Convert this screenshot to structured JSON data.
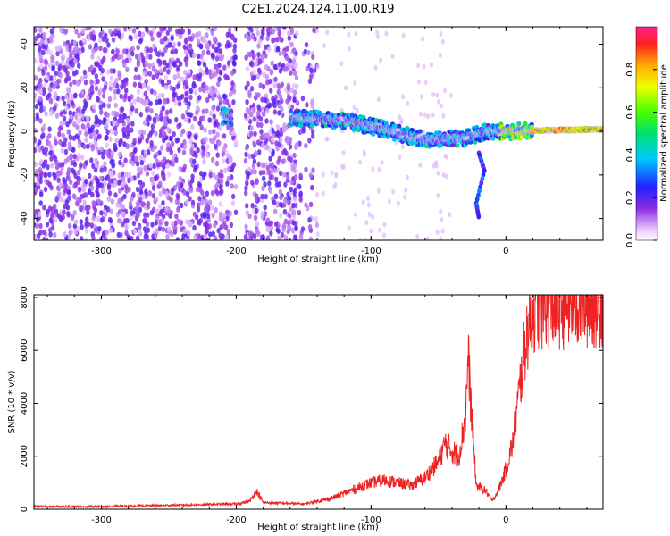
{
  "title": "C2E1.2024.124.11.00.R19",
  "chart_data": [
    {
      "type": "heatmap",
      "xlabel": "Height of straight line (km)",
      "ylabel": "Frequency (Hz)",
      "xlim": [
        -350,
        72
      ],
      "ylim": [
        -50,
        48
      ],
      "xticks": [
        -300,
        -200,
        -100,
        0
      ],
      "yticks": [
        -40,
        -20,
        0,
        20,
        40
      ],
      "colorbar": {
        "label": "Normalized spectral amplitude",
        "range": [
          0,
          1
        ],
        "ticks": [
          "0.0",
          "0.2",
          "0.4",
          "0.6",
          "0.8"
        ],
        "tick_values": [
          0,
          0.2,
          0.4,
          0.6,
          0.8
        ]
      },
      "features": {
        "noise_region_x": [
          -350,
          -140
        ],
        "data_gap_x": [
          -200,
          -193
        ],
        "signal_path": [
          {
            "x": -210,
            "y": 7
          },
          {
            "x": -150,
            "y": 6
          },
          {
            "x": -120,
            "y": 5
          },
          {
            "x": -90,
            "y": 1
          },
          {
            "x": -60,
            "y": -4
          },
          {
            "x": -30,
            "y": -3
          },
          {
            "x": -15,
            "y": 0
          },
          {
            "x": 0,
            "y": 0
          },
          {
            "x": 72,
            "y": 1
          }
        ],
        "strong_tone_x": [
          20,
          72
        ],
        "branch_down": [
          {
            "x": -20,
            "y": -10
          },
          {
            "x": -16,
            "y": -18
          },
          {
            "x": -22,
            "y": -33
          },
          {
            "x": -20,
            "y": -40
          }
        ]
      }
    },
    {
      "type": "line",
      "xlabel": "Height of straight line (km)",
      "ylabel": "SNR (10 * v/v)",
      "xlim": [
        -350,
        72
      ],
      "ylim": [
        0,
        8100
      ],
      "xticks": [
        -300,
        -200,
        -100,
        0
      ],
      "yticks": [
        0,
        2000,
        4000,
        6000,
        8000
      ],
      "series": [
        {
          "color": "#ee2222",
          "x": [
            -350,
            -300,
            -250,
            -200,
            -190,
            -185,
            -180,
            -150,
            -130,
            -110,
            -100,
            -90,
            -80,
            -70,
            -60,
            -50,
            -45,
            -40,
            -35,
            -30,
            -28,
            -26,
            -22,
            -15,
            -10,
            -5,
            0,
            5,
            10,
            15,
            20,
            30,
            40,
            50,
            60,
            72
          ],
          "y": [
            100,
            100,
            150,
            200,
            300,
            700,
            250,
            200,
            400,
            800,
            1000,
            1100,
            1000,
            900,
            1200,
            1800,
            2500,
            2200,
            2000,
            3500,
            5800,
            4000,
            900,
            700,
            300,
            800,
            1500,
            2500,
            4500,
            6500,
            7500,
            7800,
            7700,
            7800,
            7750,
            7800
          ]
        }
      ]
    }
  ]
}
